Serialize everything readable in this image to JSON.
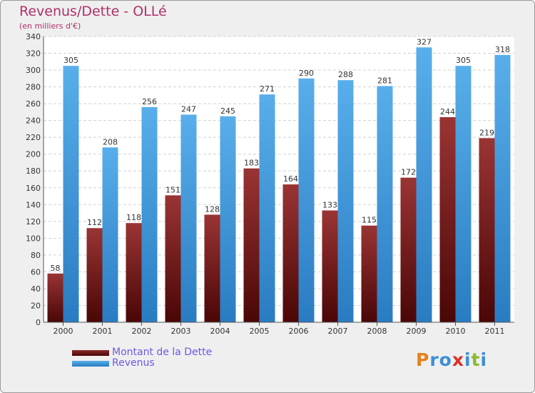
{
  "chart_data": {
    "type": "bar",
    "title": "Revenus/Dette - OLLé",
    "subtitle": "(en milliers d'€)",
    "categories": [
      "2000",
      "2001",
      "2002",
      "2003",
      "2004",
      "2005",
      "2006",
      "2007",
      "2008",
      "2009",
      "2010",
      "2011"
    ],
    "series": [
      {
        "name": "Montant de la Dette",
        "color": "#7a1e1e",
        "values": [
          58,
          112,
          118,
          151,
          128,
          183,
          164,
          133,
          115,
          172,
          244,
          219
        ]
      },
      {
        "name": "Revenus",
        "color": "#4aa3e6",
        "values": [
          305,
          208,
          256,
          247,
          245,
          271,
          290,
          288,
          281,
          327,
          305,
          318
        ]
      }
    ],
    "ylim": [
      0,
      340
    ],
    "yticks": [
      0,
      20,
      40,
      60,
      80,
      100,
      120,
      140,
      160,
      180,
      200,
      220,
      240,
      260,
      280,
      300,
      320,
      340
    ],
    "grid": true,
    "legend_position": "bottom-left"
  },
  "logo": {
    "letters": [
      "P",
      "r",
      "o",
      "x",
      "i",
      "t",
      "i"
    ],
    "colors": [
      "#e8801a",
      "#3d8fd6",
      "#3d8fd6",
      "#d8342c",
      "#3d8fd6",
      "#8bb935",
      "#3d8fd6"
    ]
  }
}
